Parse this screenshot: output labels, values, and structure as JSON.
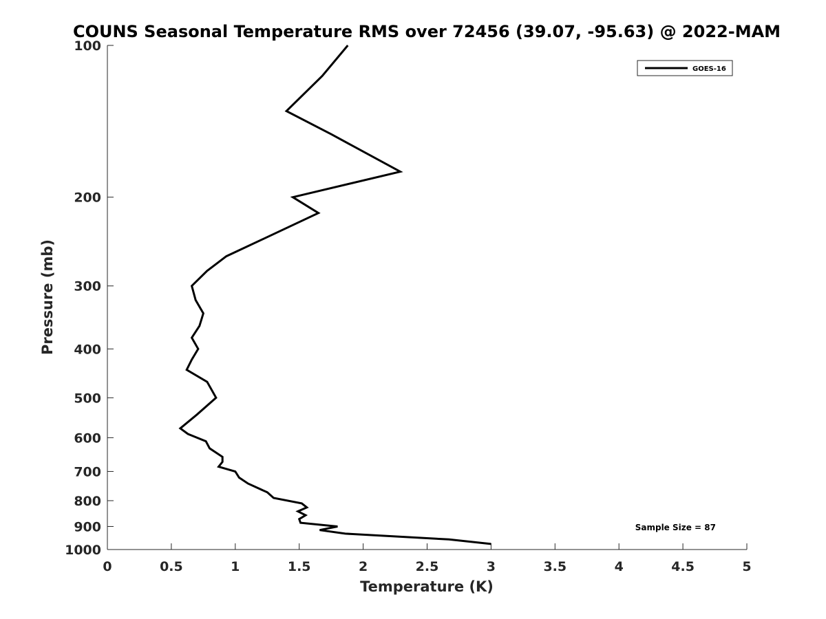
{
  "chart_data": {
    "type": "line",
    "title": "COUNS Seasonal Temperature RMS over 72456 (39.07, -95.63) @ 2022-MAM",
    "xlabel": "Temperature (K)",
    "ylabel": "Pressure (mb)",
    "xlim": [
      0,
      5
    ],
    "ylim": [
      100,
      1000
    ],
    "y_scale": "log",
    "y_reversed": true,
    "grid": false,
    "legend_position": "top-right",
    "x_ticks": [
      "0",
      "0.5",
      "1",
      "1.5",
      "2",
      "2.5",
      "3",
      "3.5",
      "4",
      "4.5",
      "5"
    ],
    "y_ticks": [
      "100",
      "200",
      "300",
      "400",
      "500",
      "600",
      "700",
      "800",
      "900",
      "1000"
    ],
    "annotation": "Sample Size = 87",
    "series": [
      {
        "name": "GOES-16",
        "color": "#000000",
        "points": [
          [
            1.88,
            100
          ],
          [
            1.68,
            115
          ],
          [
            1.4,
            135
          ],
          [
            1.75,
            150
          ],
          [
            2.29,
            178
          ],
          [
            1.45,
            200
          ],
          [
            1.65,
            215
          ],
          [
            1.25,
            240
          ],
          [
            0.93,
            262
          ],
          [
            0.78,
            280
          ],
          [
            0.66,
            300
          ],
          [
            0.69,
            320
          ],
          [
            0.75,
            340
          ],
          [
            0.72,
            360
          ],
          [
            0.66,
            380
          ],
          [
            0.71,
            400
          ],
          [
            0.66,
            420
          ],
          [
            0.62,
            440
          ],
          [
            0.78,
            465
          ],
          [
            0.85,
            500
          ],
          [
            0.7,
            540
          ],
          [
            0.57,
            575
          ],
          [
            0.63,
            590
          ],
          [
            0.77,
            610
          ],
          [
            0.8,
            630
          ],
          [
            0.9,
            655
          ],
          [
            0.9,
            670
          ],
          [
            0.87,
            685
          ],
          [
            1.0,
            700
          ],
          [
            1.03,
            720
          ],
          [
            1.1,
            740
          ],
          [
            1.25,
            770
          ],
          [
            1.3,
            790
          ],
          [
            1.52,
            810
          ],
          [
            1.56,
            825
          ],
          [
            1.49,
            840
          ],
          [
            1.55,
            855
          ],
          [
            1.5,
            870
          ],
          [
            1.51,
            885
          ],
          [
            1.8,
            900
          ],
          [
            1.66,
            915
          ],
          [
            1.86,
            930
          ],
          [
            2.67,
            955
          ],
          [
            3.0,
            975
          ]
        ]
      }
    ]
  }
}
